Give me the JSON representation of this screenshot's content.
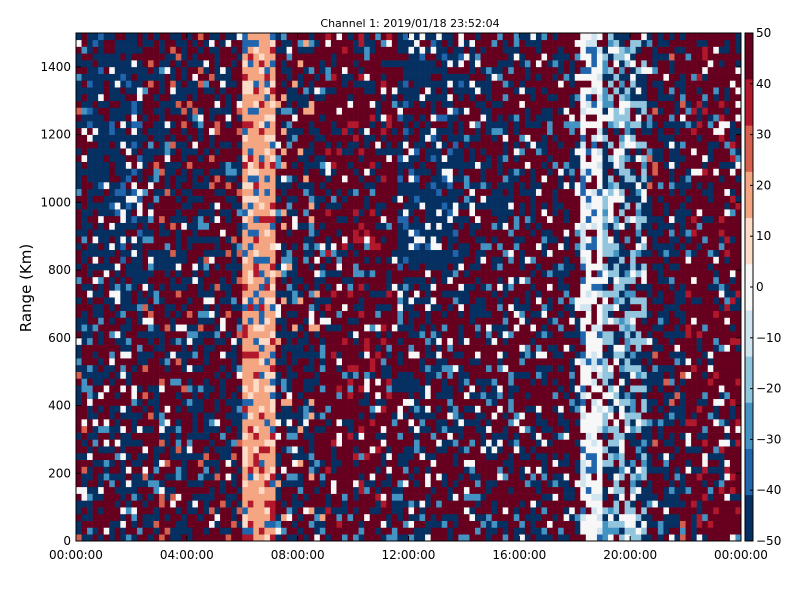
{
  "chart_data": {
    "type": "heatmap",
    "title": "Channel 1: 2019/01/18 23:52:04",
    "xlabel": "",
    "ylabel": "Range (Km)",
    "x_ticks": [
      "00:00:00",
      "04:00:00",
      "08:00:00",
      "12:00:00",
      "16:00:00",
      "20:00:00",
      "00:00:00"
    ],
    "x_tick_hours": [
      0,
      4,
      8,
      12,
      16,
      20,
      24
    ],
    "xlim_hours": [
      0,
      24
    ],
    "y_ticks": [
      0,
      200,
      400,
      600,
      800,
      1000,
      1200,
      1400
    ],
    "ylim": [
      0,
      1500
    ],
    "colorbar": {
      "ticks": [
        50,
        40,
        30,
        20,
        10,
        0,
        -10,
        -20,
        -30,
        -40,
        -50
      ],
      "range": [
        -50,
        50
      ],
      "colormap": "RdBu_r",
      "colors": [
        "#053061",
        "#2166ac",
        "#4393c3",
        "#92c5de",
        "#d1e5f0",
        "#f7f7f7",
        "#fddbc7",
        "#f4a582",
        "#d6604d",
        "#b2182b",
        "#67001f"
      ]
    },
    "grid": false,
    "legend": "none",
    "cell_width_hours": 0.2,
    "cell_height_km": 20,
    "column_profiles": [
      {
        "from_hour": 0.0,
        "to_hour": 0.4,
        "pattern": "mixed red/blue, some white"
      },
      {
        "from_hour": 0.4,
        "to_hour": 2.5,
        "pattern": "dominant blue at 1000-1400 km, mixed below"
      },
      {
        "from_hour": 2.5,
        "to_hour": 6.0,
        "pattern": "mixed dark red and dark blue"
      },
      {
        "from_hour": 6.0,
        "to_hour": 7.3,
        "pattern": "light pink/salmon band"
      },
      {
        "from_hour": 7.3,
        "to_hour": 9.0,
        "pattern": "mixed, blue vertical streaks"
      },
      {
        "from_hour": 9.0,
        "to_hour": 11.5,
        "pattern": "dominant dark red"
      },
      {
        "from_hour": 11.5,
        "to_hour": 14.0,
        "pattern": "dominant dark blue at 800-1400 km"
      },
      {
        "from_hour": 14.0,
        "to_hour": 18.2,
        "pattern": "mixed, mostly red"
      },
      {
        "from_hour": 18.2,
        "to_hour": 19.0,
        "pattern": "white/light band"
      },
      {
        "from_hour": 19.0,
        "to_hour": 20.5,
        "pattern": "mixed, light blue"
      },
      {
        "from_hour": 20.5,
        "to_hour": 22.0,
        "pattern": "mixed blue/red"
      },
      {
        "from_hour": 22.0,
        "to_hour": 24.0,
        "pattern": "dominant dark red"
      }
    ]
  }
}
